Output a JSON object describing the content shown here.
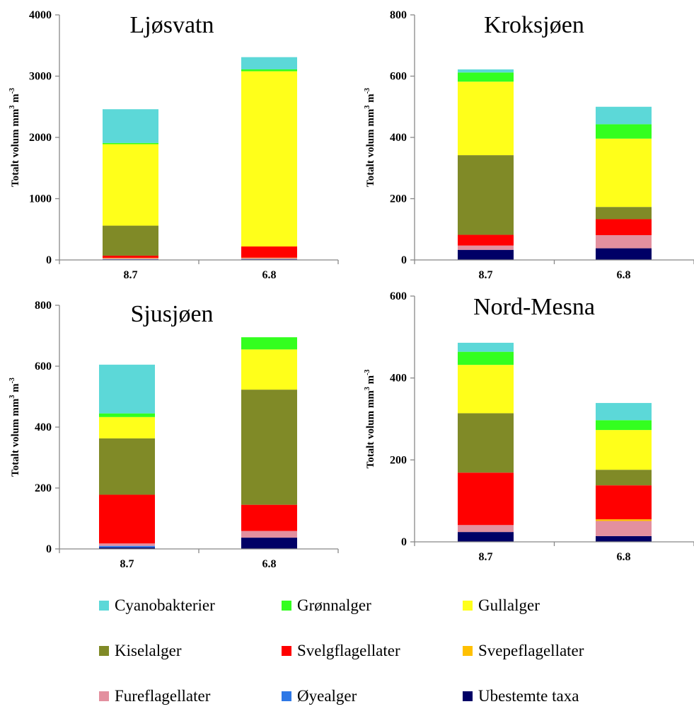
{
  "ylabel": "Totalt volum mm³ m⁻³",
  "ylabel_parts": {
    "a": "Totalt volum mm",
    "sup1": "3",
    "b": " m",
    "sup2": "-3"
  },
  "series": [
    {
      "name": "Cyanobakterier",
      "color": "#5cd8d8"
    },
    {
      "name": "Grønnalger",
      "color": "#33ff1f"
    },
    {
      "name": "Gullalger",
      "color": "#ffff1a"
    },
    {
      "name": "Kiselalger",
      "color": "#808a27"
    },
    {
      "name": "Svelgflagellater",
      "color": "#ff0000"
    },
    {
      "name": "Svepeflagellater",
      "color": "#ffc000"
    },
    {
      "name": "Fureflagellater",
      "color": "#e3909f"
    },
    {
      "name": "Øyealger",
      "color": "#2e78e6"
    },
    {
      "name": "Ubestemte taxa",
      "color": "#000066"
    }
  ],
  "chart_data": [
    {
      "type": "bar",
      "stacked": true,
      "title": "Ljøsvatn",
      "categories": [
        "8.7",
        "6.8"
      ],
      "ylim": [
        0,
        4000
      ],
      "yticks": [
        0,
        1000,
        2000,
        3000,
        4000
      ],
      "series": [
        {
          "name": "Ubestemte taxa",
          "values": [
            10,
            12
          ]
        },
        {
          "name": "Øyealger",
          "values": [
            3,
            3
          ]
        },
        {
          "name": "Fureflagellater",
          "values": [
            20,
            20
          ]
        },
        {
          "name": "Svepeflagellater",
          "values": [
            2,
            2
          ]
        },
        {
          "name": "Svelgflagellater",
          "values": [
            35,
            183
          ]
        },
        {
          "name": "Kiselalger",
          "values": [
            490,
            0
          ]
        },
        {
          "name": "Gullalger",
          "values": [
            1330,
            2860
          ]
        },
        {
          "name": "Grønnalger",
          "values": [
            20,
            30
          ]
        },
        {
          "name": "Cyanobakterier",
          "values": [
            550,
            200
          ]
        }
      ]
    },
    {
      "type": "bar",
      "stacked": true,
      "title": "Kroksjøen",
      "categories": [
        "8.7",
        "6.8"
      ],
      "ylim": [
        0,
        800
      ],
      "yticks": [
        0,
        200,
        400,
        600,
        800
      ],
      "series": [
        {
          "name": "Ubestemte taxa",
          "values": [
            33,
            38
          ]
        },
        {
          "name": "Øyealger",
          "values": [
            0,
            0
          ]
        },
        {
          "name": "Fureflagellater",
          "values": [
            14,
            43
          ]
        },
        {
          "name": "Svepeflagellater",
          "values": [
            0,
            0
          ]
        },
        {
          "name": "Svelgflagellater",
          "values": [
            35,
            52
          ]
        },
        {
          "name": "Kiselalger",
          "values": [
            260,
            40
          ]
        },
        {
          "name": "Gullalger",
          "values": [
            240,
            223
          ]
        },
        {
          "name": "Grønnalger",
          "values": [
            30,
            47
          ]
        },
        {
          "name": "Cyanobakterier",
          "values": [
            10,
            57
          ]
        }
      ]
    },
    {
      "type": "bar",
      "stacked": true,
      "title": "Sjusjøen",
      "categories": [
        "8.7",
        "6.8"
      ],
      "ylim": [
        0,
        800
      ],
      "yticks": [
        0,
        200,
        400,
        600,
        800
      ],
      "series": [
        {
          "name": "Ubestemte taxa",
          "values": [
            5,
            37
          ]
        },
        {
          "name": "Øyealger",
          "values": [
            5,
            0
          ]
        },
        {
          "name": "Fureflagellater",
          "values": [
            8,
            22
          ]
        },
        {
          "name": "Svepeflagellater",
          "values": [
            0,
            0
          ]
        },
        {
          "name": "Svelgflagellater",
          "values": [
            160,
            86
          ]
        },
        {
          "name": "Kiselalger",
          "values": [
            185,
            378
          ]
        },
        {
          "name": "Gullalger",
          "values": [
            70,
            132
          ]
        },
        {
          "name": "Grønnalger",
          "values": [
            12,
            40
          ]
        },
        {
          "name": "Cyanobakterier",
          "values": [
            160,
            0
          ]
        }
      ]
    },
    {
      "type": "bar",
      "stacked": true,
      "title": "Nord-Mesna",
      "categories": [
        "8.7",
        "6.8"
      ],
      "ylim": [
        0,
        600
      ],
      "yticks": [
        0,
        200,
        400,
        600
      ],
      "series": [
        {
          "name": "Ubestemte taxa",
          "values": [
            24,
            14
          ]
        },
        {
          "name": "Øyealger",
          "values": [
            0,
            0
          ]
        },
        {
          "name": "Fureflagellater",
          "values": [
            17,
            37
          ]
        },
        {
          "name": "Svepeflagellater",
          "values": [
            0,
            4
          ]
        },
        {
          "name": "Svelgflagellater",
          "values": [
            128,
            83
          ]
        },
        {
          "name": "Kiselalger",
          "values": [
            145,
            38
          ]
        },
        {
          "name": "Gullalger",
          "values": [
            118,
            97
          ]
        },
        {
          "name": "Grønnalger",
          "values": [
            32,
            24
          ]
        },
        {
          "name": "Cyanobakterier",
          "values": [
            22,
            42
          ]
        }
      ]
    }
  ]
}
